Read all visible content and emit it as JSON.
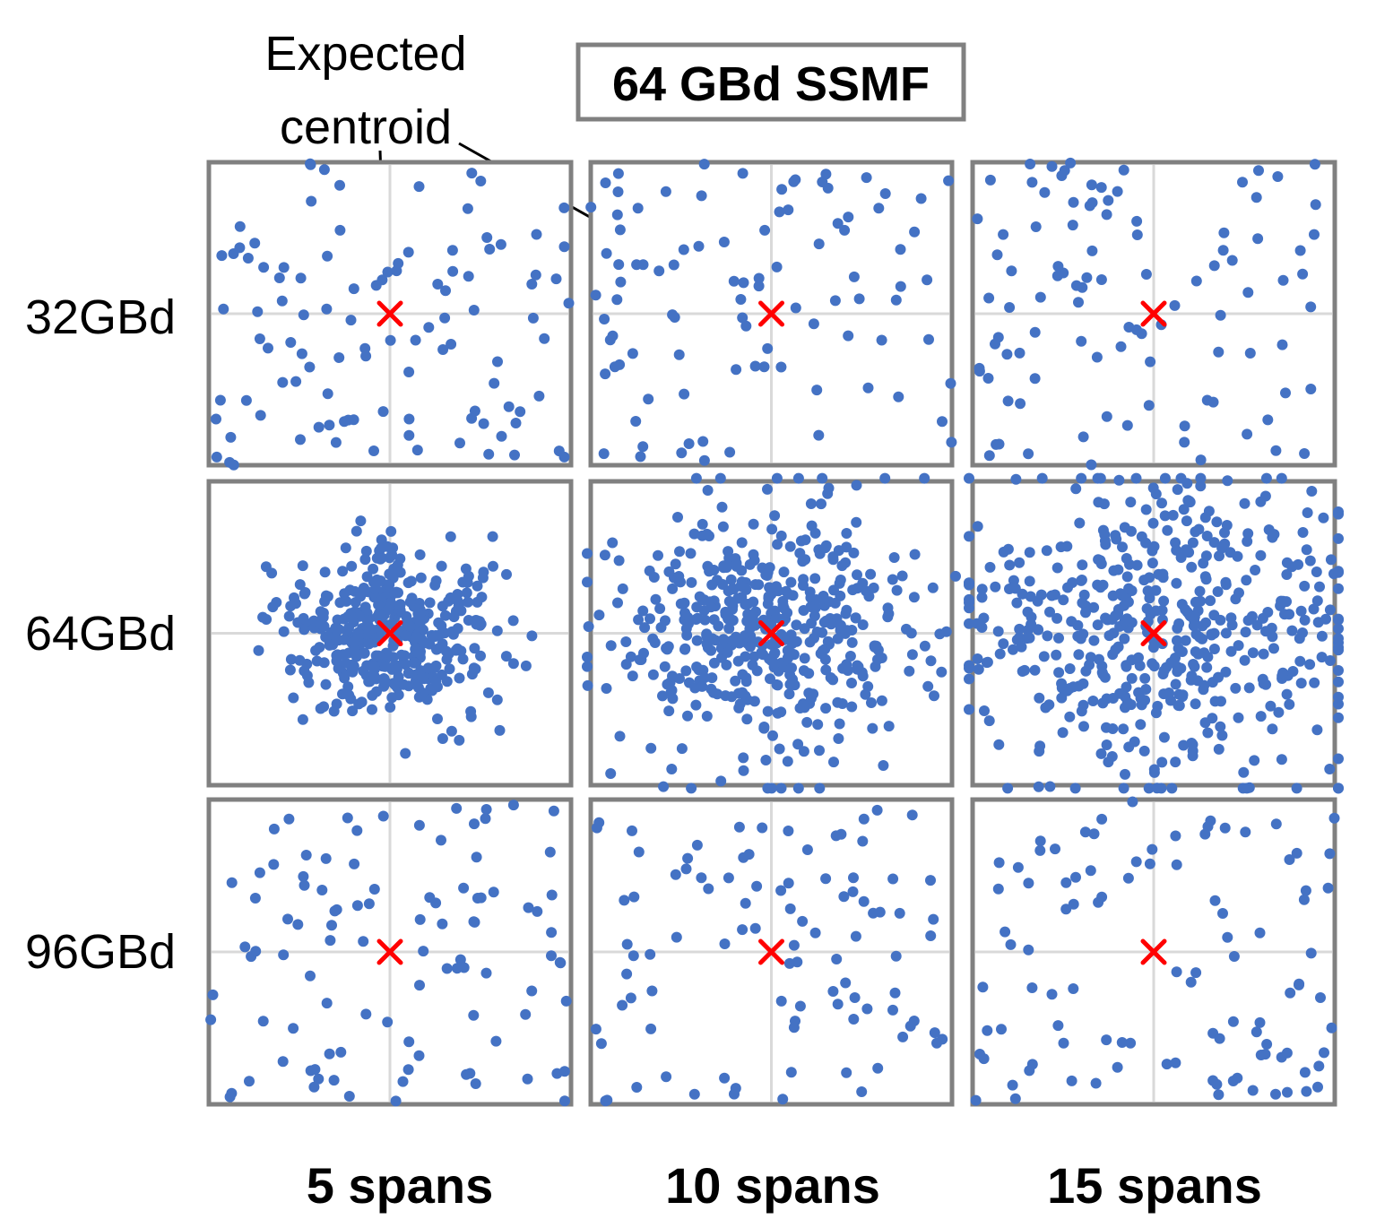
{
  "title_box": {
    "label": "64 GBd SSMF"
  },
  "annotation": {
    "line1": "Expected",
    "line2": "centroid"
  },
  "colors": {
    "point": "#4472C4",
    "centroid": "#FF0000",
    "frame": "#808080",
    "gridline": "#D9D9D9",
    "text": "#000000"
  },
  "chart_data": {
    "type": "scatter",
    "title": "64 GBd SSMF",
    "row_labels": [
      "32GBd",
      "64GBd",
      "96GBd"
    ],
    "column_labels": [
      "5 spans",
      "10 spans",
      "15 spans"
    ],
    "axes": {
      "xlim": [
        -1,
        1
      ],
      "ylim": [
        -1,
        1
      ],
      "grid": "center-cross",
      "ticks": "none"
    },
    "centroid_marker": {
      "x": 0,
      "y": 0,
      "shape": "x"
    },
    "panels": [
      {
        "row": "32GBd",
        "column": "5 spans",
        "distribution": "uniform",
        "n_points": 105,
        "spread": 1.0,
        "seed": 11
      },
      {
        "row": "32GBd",
        "column": "10 spans",
        "distribution": "uniform",
        "n_points": 95,
        "spread": 1.0,
        "seed": 23
      },
      {
        "row": "32GBd",
        "column": "15 spans",
        "distribution": "uniform",
        "n_points": 100,
        "spread": 1.0,
        "seed": 37
      },
      {
        "row": "64GBd",
        "column": "5 spans",
        "distribution": "gaussian",
        "n_points": 420,
        "spread": 0.3,
        "seed": 41
      },
      {
        "row": "64GBd",
        "column": "10 spans",
        "distribution": "gaussian",
        "n_points": 470,
        "spread": 0.46,
        "seed": 53
      },
      {
        "row": "64GBd",
        "column": "15 spans",
        "distribution": "gaussian",
        "n_points": 500,
        "spread": 0.54,
        "seed": 67
      },
      {
        "row": "96GBd",
        "column": "5 spans",
        "distribution": "uniform",
        "n_points": 100,
        "spread": 1.0,
        "seed": 71
      },
      {
        "row": "96GBd",
        "column": "10 spans",
        "distribution": "uniform",
        "n_points": 95,
        "spread": 1.0,
        "seed": 83
      },
      {
        "row": "96GBd",
        "column": "15 spans",
        "distribution": "uniform",
        "n_points": 100,
        "spread": 1.0,
        "seed": 97
      }
    ]
  }
}
